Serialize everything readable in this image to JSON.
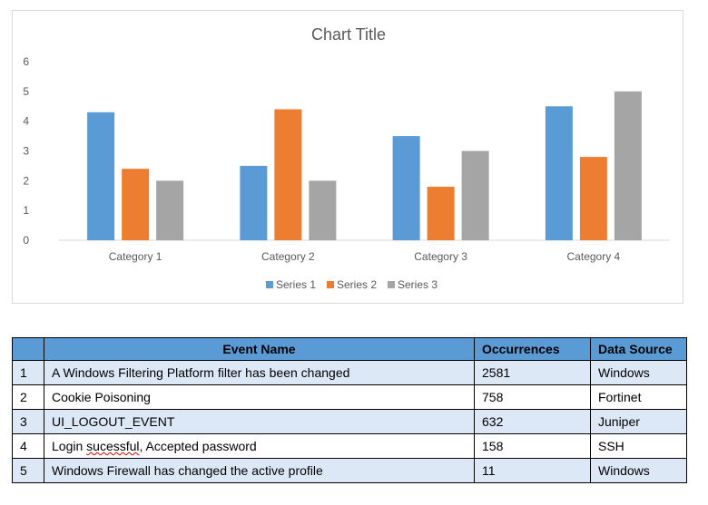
{
  "chart_data": {
    "type": "bar",
    "title": "Chart Title",
    "categories": [
      "Category 1",
      "Category 2",
      "Category 3",
      "Category 4"
    ],
    "series": [
      {
        "name": "Series 1",
        "values": [
          4.3,
          2.5,
          3.5,
          4.5
        ],
        "color": "#5b9bd5"
      },
      {
        "name": "Series 2",
        "values": [
          2.4,
          4.4,
          1.8,
          2.8
        ],
        "color": "#ed7d31"
      },
      {
        "name": "Series 3",
        "values": [
          2.0,
          2.0,
          3.0,
          5.0
        ],
        "color": "#a5a5a5"
      }
    ],
    "ylim": [
      0,
      6
    ],
    "yticks": [
      "0",
      "1",
      "2",
      "3",
      "4",
      "5",
      "6"
    ],
    "grid": false,
    "legend_position": "bottom"
  },
  "table": {
    "headers": [
      "",
      "Event Name",
      "Occurrences",
      "Data Source"
    ],
    "rows": [
      {
        "num": "1",
        "event": "A Windows Filtering Platform filter has been changed",
        "occurrences": "2581",
        "source": "Windows"
      },
      {
        "num": "2",
        "event": "Cookie Poisoning",
        "occurrences": "758",
        "source": "Fortinet"
      },
      {
        "num": "3",
        "event": "UI_LOGOUT_EVENT",
        "occurrences": "632",
        "source": "Juniper"
      },
      {
        "num": "4",
        "event_prefix": "Login ",
        "event_squiggle": "sucessful",
        "event_suffix": ", Accepted password",
        "occurrences": "158",
        "source": "SSH"
      },
      {
        "num": "5",
        "event": "Windows Firewall has changed the active profile",
        "occurrences": "11",
        "source": "Windows"
      }
    ]
  }
}
